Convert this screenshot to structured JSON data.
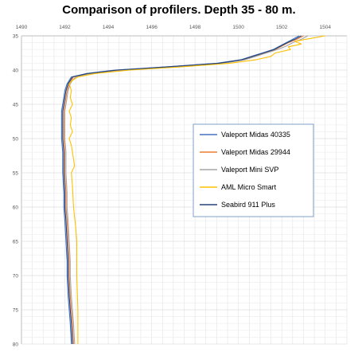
{
  "chart_data": {
    "type": "line",
    "title": "Comparison of profilers. Depth 35 - 80 m.",
    "xlabel": "",
    "ylabel": "",
    "x_axis_position": "top",
    "y_axis_inverted": true,
    "xlim": [
      1490,
      1505
    ],
    "ylim": [
      35,
      80
    ],
    "x_ticks": [
      "1490",
      "1492",
      "1494",
      "1496",
      "1498",
      "1500",
      "1502",
      "1504"
    ],
    "x_tick_values": [
      1490,
      1492,
      1494,
      1496,
      1498,
      1500,
      1502,
      1504
    ],
    "y_ticks": [
      "35",
      "40",
      "45",
      "50",
      "55",
      "60",
      "65",
      "70",
      "75",
      "80"
    ],
    "y_tick_values": [
      35,
      40,
      45,
      50,
      55,
      60,
      65,
      70,
      75,
      80
    ],
    "grid": true,
    "legend_position": "center-right",
    "series": [
      {
        "name": "Valeport Midas 40335",
        "color": "#4472C4",
        "points": [
          [
            1502.8,
            35
          ],
          [
            1502.5,
            35.5
          ],
          [
            1502.2,
            36
          ],
          [
            1501.9,
            36.5
          ],
          [
            1501.6,
            37
          ],
          [
            1501.1,
            37.5
          ],
          [
            1500.6,
            38
          ],
          [
            1500.1,
            38.5
          ],
          [
            1499.0,
            39
          ],
          [
            1496.8,
            39.5
          ],
          [
            1494.3,
            40
          ],
          [
            1493.0,
            40.5
          ],
          [
            1492.3,
            41
          ],
          [
            1492.2,
            41.5
          ],
          [
            1492.1,
            42
          ],
          [
            1492.0,
            43
          ],
          [
            1491.95,
            44
          ],
          [
            1491.9,
            45
          ],
          [
            1491.85,
            46
          ],
          [
            1491.85,
            47
          ],
          [
            1491.85,
            48
          ],
          [
            1491.85,
            50
          ],
          [
            1491.9,
            52
          ],
          [
            1491.9,
            55
          ],
          [
            1491.95,
            58
          ],
          [
            1491.95,
            60
          ],
          [
            1492.0,
            62
          ],
          [
            1492.05,
            65
          ],
          [
            1492.1,
            68
          ],
          [
            1492.1,
            70
          ],
          [
            1492.15,
            73
          ],
          [
            1492.2,
            75
          ],
          [
            1492.25,
            77
          ],
          [
            1492.3,
            80
          ]
        ]
      },
      {
        "name": "Valeport Midas 29944",
        "color": "#ED7D31",
        "points": [
          [
            1503.0,
            35
          ],
          [
            1502.7,
            35.5
          ],
          [
            1502.3,
            36
          ],
          [
            1502.0,
            36.5
          ],
          [
            1501.7,
            37
          ],
          [
            1501.2,
            37.5
          ],
          [
            1500.7,
            38
          ],
          [
            1500.2,
            38.5
          ],
          [
            1499.2,
            39
          ],
          [
            1497.0,
            39.5
          ],
          [
            1494.6,
            40
          ],
          [
            1493.1,
            40.5
          ],
          [
            1492.4,
            41
          ],
          [
            1492.3,
            41.5
          ],
          [
            1492.2,
            42
          ],
          [
            1492.1,
            43
          ],
          [
            1492.05,
            44
          ],
          [
            1492.0,
            45
          ],
          [
            1491.95,
            46
          ],
          [
            1491.95,
            47
          ],
          [
            1491.95,
            48
          ],
          [
            1491.95,
            50
          ],
          [
            1492.0,
            52
          ],
          [
            1492.0,
            55
          ],
          [
            1492.05,
            58
          ],
          [
            1492.05,
            60
          ],
          [
            1492.1,
            62
          ],
          [
            1492.15,
            65
          ],
          [
            1492.2,
            68
          ],
          [
            1492.2,
            70
          ],
          [
            1492.25,
            73
          ],
          [
            1492.3,
            75
          ],
          [
            1492.35,
            77
          ],
          [
            1492.4,
            80
          ]
        ]
      },
      {
        "name": "Valeport Mini SVP",
        "color": "#A5A5A5",
        "points": [
          [
            1503.2,
            35
          ],
          [
            1502.9,
            35.5
          ],
          [
            1502.5,
            36
          ],
          [
            1502.2,
            36.5
          ],
          [
            1501.8,
            37
          ],
          [
            1501.3,
            37.5
          ],
          [
            1500.8,
            38
          ],
          [
            1500.3,
            38.5
          ],
          [
            1499.3,
            39
          ],
          [
            1497.2,
            39.5
          ],
          [
            1494.8,
            40
          ],
          [
            1493.2,
            40.5
          ],
          [
            1492.5,
            41
          ],
          [
            1492.35,
            41.5
          ],
          [
            1492.25,
            42
          ],
          [
            1492.15,
            43
          ],
          [
            1492.1,
            44
          ],
          [
            1492.05,
            45
          ],
          [
            1492.0,
            46
          ],
          [
            1492.0,
            47
          ],
          [
            1492.0,
            48
          ],
          [
            1492.0,
            50
          ],
          [
            1492.05,
            52
          ],
          [
            1492.05,
            55
          ],
          [
            1492.1,
            58
          ],
          [
            1492.1,
            60
          ],
          [
            1492.15,
            62
          ],
          [
            1492.2,
            65
          ],
          [
            1492.25,
            68
          ],
          [
            1492.25,
            70
          ],
          [
            1492.3,
            73
          ],
          [
            1492.35,
            75
          ],
          [
            1492.4,
            77
          ],
          [
            1492.45,
            80
          ]
        ]
      },
      {
        "name": "AML Micro Smart",
        "color": "#FFC000",
        "points": [
          [
            1504.0,
            35
          ],
          [
            1503.3,
            35.4
          ],
          [
            1502.6,
            35.8
          ],
          [
            1502.9,
            36.2
          ],
          [
            1502.3,
            36.6
          ],
          [
            1502.4,
            37
          ],
          [
            1501.7,
            37.5
          ],
          [
            1501.5,
            38
          ],
          [
            1500.8,
            38.5
          ],
          [
            1499.6,
            39
          ],
          [
            1497.5,
            39.5
          ],
          [
            1495.0,
            40
          ],
          [
            1493.4,
            40.5
          ],
          [
            1492.6,
            41
          ],
          [
            1492.35,
            41.5
          ],
          [
            1492.2,
            42
          ],
          [
            1492.3,
            43
          ],
          [
            1492.25,
            44
          ],
          [
            1492.35,
            45
          ],
          [
            1492.2,
            46
          ],
          [
            1492.3,
            47
          ],
          [
            1492.25,
            48
          ],
          [
            1492.35,
            49
          ],
          [
            1492.2,
            50
          ],
          [
            1492.3,
            51
          ],
          [
            1492.35,
            52
          ],
          [
            1492.4,
            53
          ],
          [
            1492.45,
            54
          ],
          [
            1492.3,
            55
          ],
          [
            1492.35,
            57
          ],
          [
            1492.4,
            60
          ],
          [
            1492.5,
            63
          ],
          [
            1492.55,
            65
          ],
          [
            1492.55,
            70
          ],
          [
            1492.6,
            75
          ],
          [
            1492.6,
            80
          ]
        ]
      },
      {
        "name": "Seabird 911 Plus",
        "color": "#264478",
        "points": [
          [
            1502.9,
            35
          ],
          [
            1502.6,
            35.5
          ],
          [
            1502.25,
            36
          ],
          [
            1501.95,
            36.5
          ],
          [
            1501.65,
            37
          ],
          [
            1501.15,
            37.5
          ],
          [
            1500.65,
            38
          ],
          [
            1500.15,
            38.5
          ],
          [
            1499.1,
            39
          ],
          [
            1496.9,
            39.5
          ],
          [
            1494.4,
            40
          ],
          [
            1493.05,
            40.5
          ],
          [
            1492.35,
            41
          ],
          [
            1492.25,
            41.5
          ],
          [
            1492.15,
            42
          ],
          [
            1492.05,
            43
          ],
          [
            1492.0,
            44
          ],
          [
            1491.95,
            45
          ],
          [
            1491.9,
            46
          ],
          [
            1491.9,
            47
          ],
          [
            1491.9,
            48
          ],
          [
            1491.9,
            50
          ],
          [
            1491.95,
            52
          ],
          [
            1491.95,
            55
          ],
          [
            1492.0,
            58
          ],
          [
            1492.0,
            60
          ],
          [
            1492.05,
            62
          ],
          [
            1492.1,
            65
          ],
          [
            1492.15,
            68
          ],
          [
            1492.15,
            70
          ],
          [
            1492.2,
            73
          ],
          [
            1492.25,
            75
          ],
          [
            1492.3,
            77
          ],
          [
            1492.35,
            80
          ]
        ]
      }
    ]
  }
}
